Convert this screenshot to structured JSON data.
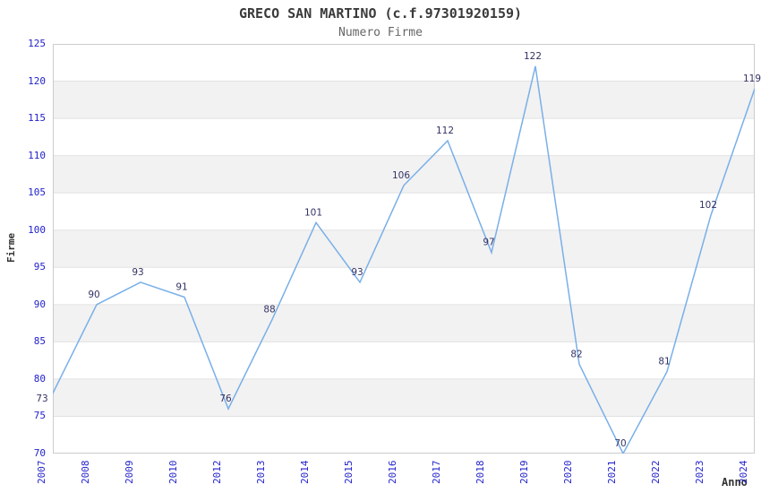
{
  "title": "GRECO SAN MARTINO (c.f.97301920159)",
  "subtitle": "Numero Firme",
  "axes": {
    "y_label": "Firme",
    "x_label": "Anno"
  },
  "colors": {
    "line": "#79afe8",
    "tick_label": "#2222cc",
    "data_label": "#333366",
    "band": "#f2f2f2",
    "grid": "#e2e2e2",
    "border": "#cccccc",
    "title": "#3a3a3a",
    "subtitle": "#666666",
    "axis_title": "#333333"
  },
  "chart_data": {
    "type": "line",
    "title": "GRECO SAN MARTINO (c.f.97301920159)",
    "subtitle": "Numero Firme",
    "xlabel": "Anno",
    "ylabel": "Firme",
    "x": [
      "2007",
      "2008",
      "2009",
      "2010",
      "2012",
      "2013",
      "2014",
      "2015",
      "2016",
      "2017",
      "2018",
      "2019",
      "2020",
      "2021",
      "2022",
      "2023",
      "2024"
    ],
    "series": [
      {
        "name": "Numero Firme",
        "values": [
          73,
          90,
          93,
          91,
          76,
          88,
          101,
          93,
          106,
          112,
          97,
          122,
          82,
          70,
          81,
          102,
          119
        ]
      }
    ],
    "ylim": [
      70,
      125
    ],
    "ytick_step": 5,
    "yticks": [
      70,
      75,
      80,
      85,
      90,
      95,
      100,
      105,
      110,
      115,
      120,
      125
    ],
    "grid": "horizontal-bands-alternating",
    "legend": "none",
    "data_labels_shown": true
  }
}
